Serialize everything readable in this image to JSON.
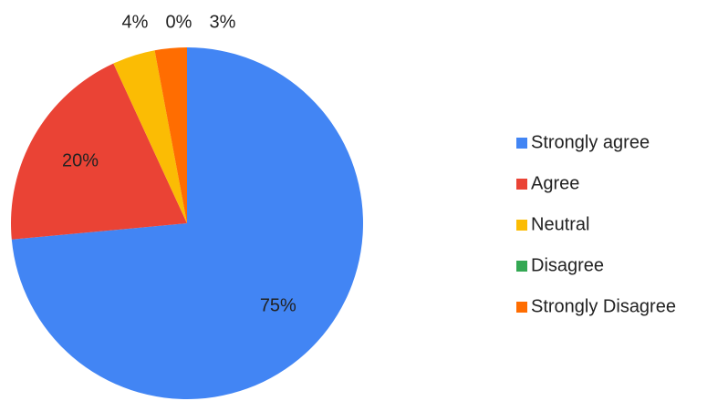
{
  "chart_data": {
    "type": "pie",
    "categories": [
      "Strongly agree",
      "Agree",
      "Neutral",
      "Disagree",
      "Strongly Disagree"
    ],
    "values": [
      75,
      20,
      4,
      0,
      3
    ],
    "value_labels": [
      "75%",
      "20%",
      "4%",
      "0%",
      "3%"
    ],
    "colors": [
      "#4285f4",
      "#ea4335",
      "#fbbc04",
      "#34a853",
      "#ff6d01"
    ],
    "legend": "right"
  }
}
